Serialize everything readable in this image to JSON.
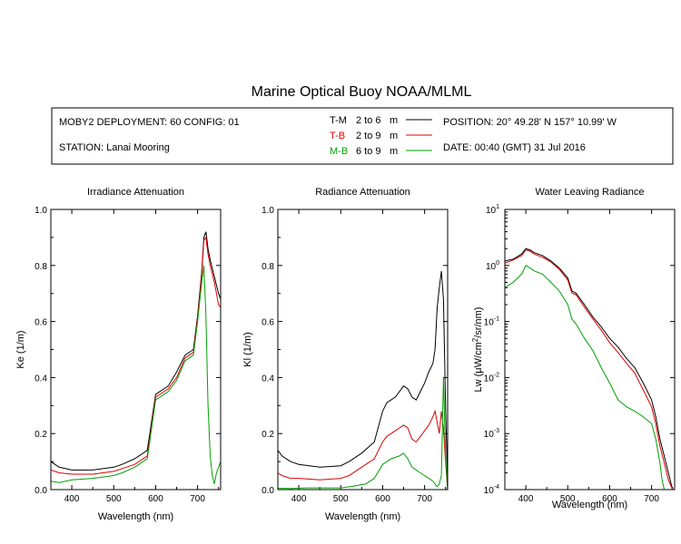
{
  "title": "Marine Optical Buoy NOAA/MLML",
  "info": {
    "deployment": "MOBY2 DEPLOYMENT: 60 CONFIG: 01",
    "station": "STATION: Lanai Mooring",
    "position": "POSITION: 20° 49.28' N   157° 10.99' W",
    "date": "DATE: 00:40 (GMT) 31 Jul 2016",
    "legend": [
      {
        "code": "T-M",
        "range": "2 to 6",
        "unit": "m",
        "color": "#000000"
      },
      {
        "code": "T-B",
        "range": "2 to 9",
        "unit": "m",
        "color": "#dd0000"
      },
      {
        "code": "M-B",
        "range": "6 to 9",
        "unit": "m",
        "color": "#00a000"
      }
    ]
  },
  "chart_data": [
    {
      "type": "line",
      "title": "Irradiance Attenuation",
      "xlabel": "Wavelength (nm)",
      "ylabel": "Ke  (1/m)",
      "xlim": [
        350,
        755
      ],
      "ylim": [
        0,
        1.0
      ],
      "xticks": [
        "400",
        "500",
        "600",
        "700"
      ],
      "yticks": [
        "0.0",
        "0.2",
        "0.4",
        "0.6",
        "0.8",
        "1.0"
      ],
      "series": [
        {
          "name": "T-M",
          "color": "#000000",
          "x": [
            350,
            370,
            400,
            450,
            500,
            520,
            550,
            580,
            600,
            630,
            650,
            670,
            690,
            700,
            710,
            715,
            720,
            725,
            730,
            740,
            750,
            755
          ],
          "y": [
            0.1,
            0.08,
            0.07,
            0.07,
            0.08,
            0.09,
            0.11,
            0.14,
            0.34,
            0.37,
            0.42,
            0.48,
            0.5,
            0.62,
            0.78,
            0.9,
            0.92,
            0.86,
            0.82,
            0.76,
            0.7,
            0.68
          ]
        },
        {
          "name": "T-B",
          "color": "#dd0000",
          "x": [
            350,
            370,
            400,
            450,
            500,
            520,
            550,
            580,
            600,
            630,
            650,
            670,
            690,
            700,
            710,
            715,
            720,
            725,
            730,
            740,
            750,
            755
          ],
          "y": [
            0.07,
            0.06,
            0.055,
            0.055,
            0.065,
            0.075,
            0.09,
            0.12,
            0.33,
            0.36,
            0.4,
            0.47,
            0.49,
            0.61,
            0.77,
            0.89,
            0.9,
            0.84,
            0.8,
            0.74,
            0.66,
            0.65
          ]
        },
        {
          "name": "M-B",
          "color": "#00a000",
          "x": [
            350,
            370,
            400,
            450,
            500,
            520,
            550,
            580,
            600,
            630,
            650,
            670,
            690,
            700,
            710,
            715,
            720,
            725,
            730,
            735,
            740,
            745,
            750,
            755
          ],
          "y": [
            0.03,
            0.025,
            0.035,
            0.04,
            0.05,
            0.06,
            0.08,
            0.11,
            0.32,
            0.35,
            0.39,
            0.46,
            0.48,
            0.6,
            0.74,
            0.8,
            0.62,
            0.3,
            0.12,
            0.05,
            0.02,
            0.06,
            0.08,
            0.1
          ]
        }
      ]
    },
    {
      "type": "line",
      "title": "Radiance Attenuation",
      "xlabel": "Wavelength (nm)",
      "ylabel": "Kl  (1/m)",
      "xlim": [
        350,
        755
      ],
      "ylim": [
        0,
        1.0
      ],
      "xticks": [
        "400",
        "500",
        "600",
        "700"
      ],
      "yticks": [
        "0.0",
        "0.2",
        "0.4",
        "0.6",
        "0.8",
        "1.0"
      ],
      "series": [
        {
          "name": "T-M",
          "color": "#000000",
          "x": [
            350,
            360,
            380,
            400,
            450,
            500,
            520,
            550,
            580,
            600,
            610,
            620,
            630,
            640,
            650,
            660,
            670,
            680,
            690,
            700,
            710,
            720,
            725,
            730,
            735,
            740,
            745,
            750,
            755
          ],
          "y": [
            0.14,
            0.12,
            0.1,
            0.09,
            0.08,
            0.085,
            0.1,
            0.13,
            0.17,
            0.28,
            0.31,
            0.32,
            0.33,
            0.35,
            0.37,
            0.36,
            0.33,
            0.32,
            0.35,
            0.38,
            0.42,
            0.45,
            0.5,
            0.65,
            0.72,
            0.78,
            0.68,
            0.3,
            0.02
          ]
        },
        {
          "name": "T-B",
          "color": "#dd0000",
          "x": [
            350,
            360,
            380,
            400,
            450,
            500,
            520,
            550,
            580,
            600,
            610,
            620,
            630,
            640,
            650,
            660,
            670,
            680,
            690,
            700,
            710,
            720,
            725,
            730,
            735,
            740,
            745,
            750,
            755
          ],
          "y": [
            0.06,
            0.05,
            0.04,
            0.04,
            0.035,
            0.04,
            0.05,
            0.08,
            0.11,
            0.17,
            0.19,
            0.2,
            0.21,
            0.22,
            0.23,
            0.22,
            0.18,
            0.17,
            0.19,
            0.21,
            0.23,
            0.26,
            0.28,
            0.24,
            0.2,
            0.28,
            0.22,
            0.1,
            0.0
          ]
        },
        {
          "name": "M-B",
          "color": "#00a000",
          "x": [
            350,
            380,
            420,
            460,
            500,
            530,
            560,
            580,
            600,
            620,
            640,
            650,
            660,
            670,
            680,
            690,
            700,
            710,
            720,
            725,
            730,
            735,
            740,
            745,
            750,
            755
          ],
          "y": [
            0.005,
            0.004,
            0.006,
            0.006,
            0.006,
            0.012,
            0.02,
            0.04,
            0.09,
            0.11,
            0.12,
            0.13,
            0.11,
            0.08,
            0.07,
            0.06,
            0.05,
            0.04,
            0.03,
            0.02,
            0.01,
            0.02,
            0.05,
            0.4,
            0.12,
            0.0
          ]
        }
      ]
    },
    {
      "type": "line",
      "title": "Water Leaving Radiance",
      "xlabel": "Wavelength (nm)",
      "ylabel_main": "Lw  (μW/cm",
      "ylabel_sup": "2",
      "ylabel_tail": "/sr/nm)",
      "yscale": "log",
      "xlim": [
        350,
        755
      ],
      "ylim": [
        0.0001,
        10
      ],
      "xticks": [
        "400",
        "500",
        "600",
        "700"
      ],
      "yticks": [
        {
          "base": "10",
          "exp": "-4"
        },
        {
          "base": "10",
          "exp": "-3"
        },
        {
          "base": "10",
          "exp": "-2"
        },
        {
          "base": "10",
          "exp": "-1"
        },
        {
          "base": "10",
          "exp": "0"
        },
        {
          "base": "10",
          "exp": "1"
        }
      ],
      "series": [
        {
          "name": "T-M",
          "color": "#000000",
          "x": [
            350,
            370,
            390,
            400,
            410,
            420,
            440,
            460,
            480,
            500,
            510,
            520,
            540,
            560,
            580,
            600,
            620,
            640,
            660,
            680,
            700,
            710,
            720,
            730,
            740,
            750
          ],
          "y": [
            1.2,
            1.3,
            1.6,
            2.0,
            1.9,
            1.7,
            1.5,
            1.2,
            0.9,
            0.6,
            0.35,
            0.32,
            0.2,
            0.12,
            0.08,
            0.05,
            0.035,
            0.022,
            0.015,
            0.008,
            0.004,
            0.002,
            0.0008,
            0.0004,
            0.0002,
            0.0001
          ]
        },
        {
          "name": "T-B",
          "color": "#dd0000",
          "x": [
            350,
            370,
            390,
            400,
            410,
            420,
            440,
            460,
            480,
            500,
            510,
            520,
            540,
            560,
            580,
            600,
            620,
            640,
            660,
            680,
            700,
            710,
            720,
            730,
            740,
            750
          ],
          "y": [
            1.1,
            1.25,
            1.5,
            1.9,
            1.8,
            1.6,
            1.4,
            1.15,
            0.85,
            0.55,
            0.32,
            0.3,
            0.18,
            0.11,
            0.07,
            0.042,
            0.028,
            0.018,
            0.012,
            0.006,
            0.003,
            0.0015,
            0.0006,
            0.0003,
            0.00015,
            0.0001
          ]
        },
        {
          "name": "M-B",
          "color": "#00a000",
          "x": [
            350,
            370,
            390,
            400,
            410,
            420,
            440,
            460,
            480,
            500,
            510,
            520,
            540,
            560,
            580,
            600,
            620,
            640,
            660,
            680,
            700,
            710,
            720,
            725,
            730
          ],
          "y": [
            0.4,
            0.5,
            0.7,
            1.0,
            0.9,
            0.8,
            0.7,
            0.5,
            0.35,
            0.2,
            0.11,
            0.09,
            0.05,
            0.03,
            0.015,
            0.008,
            0.004,
            0.003,
            0.0025,
            0.002,
            0.0015,
            0.0008,
            0.0003,
            0.00015,
            0.0001
          ]
        }
      ]
    }
  ]
}
